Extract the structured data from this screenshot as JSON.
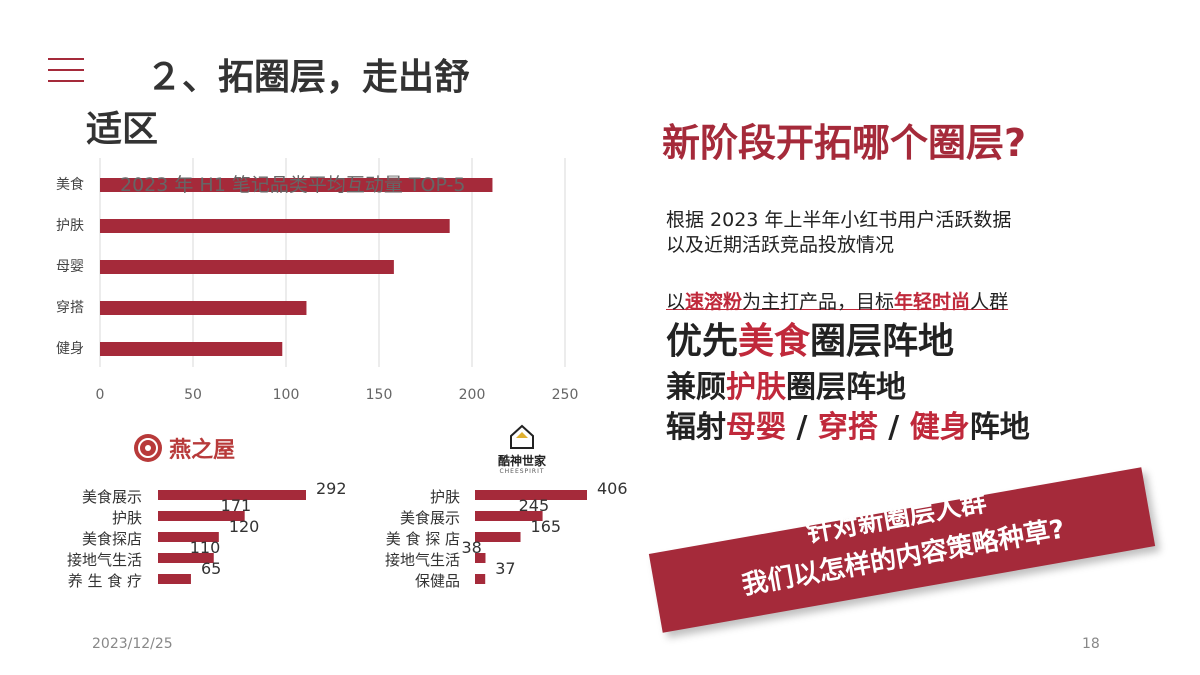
{
  "slide": {
    "title_line1": "２、拓圈层，走出舒",
    "title_line2": "适区",
    "date": "2023/12/25",
    "page_number": "18"
  },
  "main_chart": {
    "overlay_title": "2023 年 H1 笔记品类平均互动量 TOP-5"
  },
  "logos": {
    "left_brand": "燕之屋",
    "right_brand": "酷神世家",
    "right_brand_sub": "CHEESPIRIT"
  },
  "right_panel": {
    "heading": "新阶段开拓哪个圈层?",
    "para_line1": "根据 2023 年上半年小红书用户活跃数据",
    "para_line2": "以及近期活跃竞品投放情况",
    "target_prefix": "以",
    "target_product": "速溶粉",
    "target_mid": "为主打产品，目标",
    "target_group": "年轻时尚",
    "target_suffix": "人群",
    "line_a_prefix": "优先",
    "line_a_highlight": "美食",
    "line_a_suffix": "圈层阵地",
    "line_b_prefix": "兼顾",
    "line_b_highlight": "护肤",
    "line_b_suffix": "圈层阵地",
    "line_c_prefix": "辐射",
    "line_c_h1": "母婴",
    "line_c_sep1": " / ",
    "line_c_h2": "穿搭",
    "line_c_sep2": " / ",
    "line_c_h3": "健身",
    "line_c_suffix": "阵地"
  },
  "banner": {
    "line1": "针对新圈层人群",
    "line2": "我们以怎样的内容策略种草?"
  },
  "colors": {
    "accent": "#a52a3a",
    "bar": "#a52a3a",
    "highlight": "#c0293b"
  },
  "chart_data": [
    {
      "type": "bar",
      "orientation": "horizontal",
      "categories": [
        "美食",
        "护肤",
        "母婴",
        "穿搭",
        "健身"
      ],
      "values": [
        211,
        188,
        158,
        111,
        98
      ],
      "xlim": [
        0,
        250
      ],
      "xticks": [
        0,
        50,
        100,
        150,
        200,
        250
      ],
      "grid": true
    },
    {
      "type": "bar",
      "orientation": "horizontal",
      "categories": [
        "美食展示",
        "护肤",
        "美食探店",
        "接地气生活",
        "养 生 食 疗"
      ],
      "values": [
        292,
        171,
        120,
        110,
        65
      ],
      "data_labels": true
    },
    {
      "type": "bar",
      "orientation": "horizontal",
      "categories": [
        "护肤",
        "美食展示",
        "美 食 探 店",
        "接地气生活",
        "保健品"
      ],
      "values": [
        406,
        245,
        165,
        38,
        37
      ],
      "data_labels": true
    }
  ]
}
